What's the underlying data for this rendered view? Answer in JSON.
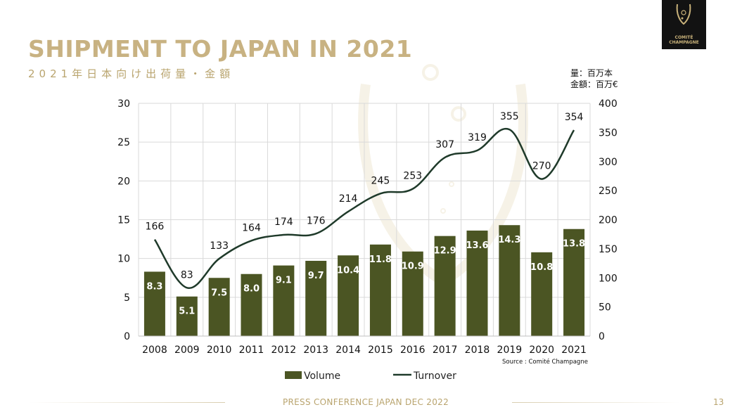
{
  "slide": {
    "title": "SHIPMENT TO JAPAN IN 2021",
    "subtitle": "2021年日本向け出荷量・金額",
    "units_volume": "量：百万本",
    "units_turnover": "金額：百万€",
    "footer": "PRESS CONFERENCE JAPAN DEC 2022",
    "page_number": "13",
    "logo_line1": "COMITÉ",
    "logo_line2": "CHAMPAGNE"
  },
  "colors": {
    "title": "#c8b282",
    "bar": "#4b5523",
    "line": "#1f3a2a"
  },
  "chart_data": {
    "type": "bar",
    "categories": [
      "2008",
      "2009",
      "2010",
      "2011",
      "2012",
      "2013",
      "2014",
      "2015",
      "2016",
      "2017",
      "2018",
      "2019",
      "2020",
      "2021"
    ],
    "series": [
      {
        "name": "Volume",
        "type": "bar",
        "axis": "left",
        "values": [
          8.3,
          5.1,
          7.5,
          8.0,
          9.1,
          9.7,
          10.4,
          11.8,
          10.9,
          12.9,
          13.6,
          14.3,
          10.8,
          13.8
        ],
        "labels": [
          "8.3",
          "5.1",
          "7.5",
          "8.0",
          "9.1",
          "9.7",
          "10.4",
          "11.8",
          "10.9",
          "12.9",
          "13.6",
          "14.3",
          "10.8",
          "13.8"
        ]
      },
      {
        "name": "Turnover",
        "type": "line",
        "axis": "right",
        "values": [
          166,
          83,
          133,
          164,
          174,
          176,
          214,
          245,
          253,
          307,
          319,
          355,
          270,
          354
        ],
        "labels": [
          "166",
          "83",
          "133",
          "164",
          "174",
          "176",
          "214",
          "245",
          "253",
          "307",
          "319",
          "355",
          "270",
          "354"
        ]
      }
    ],
    "y_left": {
      "min": 0,
      "max": 30,
      "ticks": [
        "0",
        "5",
        "10",
        "15",
        "20",
        "25",
        "30"
      ]
    },
    "y_right": {
      "min": 0,
      "max": 400,
      "ticks": [
        "0",
        "50",
        "100",
        "150",
        "200",
        "250",
        "300",
        "350",
        "400"
      ]
    },
    "grid": true,
    "legend": "bottom-center",
    "source": "Source : Comité Champagne"
  }
}
